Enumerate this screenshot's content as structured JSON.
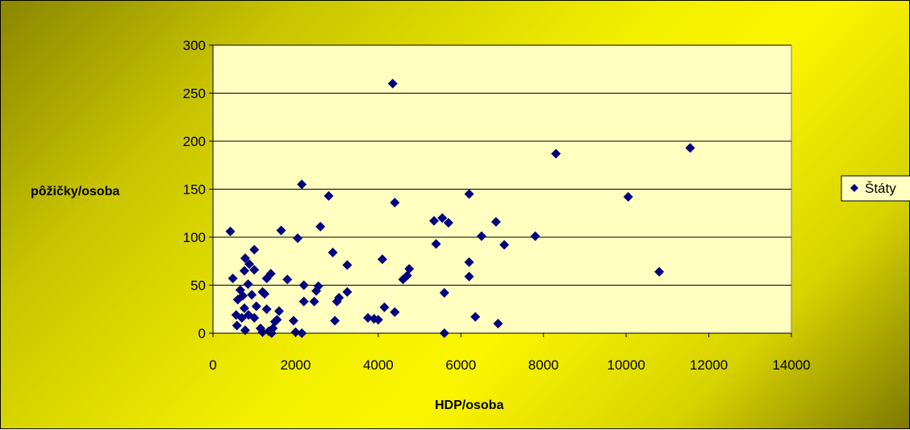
{
  "chart_data": {
    "type": "scatter",
    "xlabel": "HDP/osoba",
    "ylabel": "pôžičky/osoba",
    "xlim": [
      0,
      14000
    ],
    "ylim": [
      0,
      300
    ],
    "x_ticks": [
      0,
      2000,
      4000,
      6000,
      8000,
      10000,
      12000,
      14000
    ],
    "y_ticks": [
      0,
      50,
      100,
      150,
      200,
      250,
      300
    ],
    "grid": "horizontal",
    "legend_position": "right",
    "colors": {
      "marker": "#00007F",
      "plot_area": "#FFFFC0",
      "gridline": "#000000"
    },
    "series": [
      {
        "name": "Štáty",
        "marker": "diamond",
        "points": [
          [
            4350,
            260
          ],
          [
            11550,
            193
          ],
          [
            8300,
            187
          ],
          [
            2150,
            155
          ],
          [
            2800,
            143
          ],
          [
            6200,
            145
          ],
          [
            10050,
            142
          ],
          [
            4400,
            136
          ],
          [
            5550,
            120
          ],
          [
            5350,
            117
          ],
          [
            5700,
            115
          ],
          [
            6850,
            116
          ],
          [
            420,
            106
          ],
          [
            1650,
            107
          ],
          [
            2600,
            111
          ],
          [
            2050,
            99
          ],
          [
            6500,
            101
          ],
          [
            7800,
            101
          ],
          [
            5400,
            93
          ],
          [
            7050,
            92
          ],
          [
            1000,
            87
          ],
          [
            2900,
            84
          ],
          [
            780,
            78
          ],
          [
            880,
            72
          ],
          [
            4100,
            77
          ],
          [
            6200,
            74
          ],
          [
            3250,
            71
          ],
          [
            1000,
            66
          ],
          [
            4750,
            67
          ],
          [
            760,
            65
          ],
          [
            10800,
            64
          ],
          [
            1400,
            62
          ],
          [
            480,
            57
          ],
          [
            1300,
            57
          ],
          [
            1800,
            56
          ],
          [
            4600,
            56
          ],
          [
            4700,
            60
          ],
          [
            6200,
            59
          ],
          [
            850,
            51
          ],
          [
            2200,
            50
          ],
          [
            2550,
            49
          ],
          [
            660,
            45
          ],
          [
            1200,
            43
          ],
          [
            2500,
            44
          ],
          [
            3250,
            43
          ],
          [
            5600,
            42
          ],
          [
            1250,
            41
          ],
          [
            720,
            39
          ],
          [
            940,
            40
          ],
          [
            600,
            35
          ],
          [
            3050,
            37
          ],
          [
            3000,
            33
          ],
          [
            2200,
            33
          ],
          [
            2450,
            33
          ],
          [
            760,
            26
          ],
          [
            1050,
            28
          ],
          [
            1300,
            25
          ],
          [
            1600,
            23
          ],
          [
            4150,
            27
          ],
          [
            4400,
            22
          ],
          [
            860,
            19
          ],
          [
            560,
            19
          ],
          [
            700,
            16
          ],
          [
            1000,
            16
          ],
          [
            3750,
            16
          ],
          [
            3900,
            15
          ],
          [
            4000,
            14
          ],
          [
            2950,
            13
          ],
          [
            1950,
            13
          ],
          [
            1500,
            12
          ],
          [
            1550,
            14
          ],
          [
            6350,
            17
          ],
          [
            6900,
            10
          ],
          [
            580,
            8
          ],
          [
            1150,
            5
          ],
          [
            1450,
            5
          ],
          [
            780,
            3
          ],
          [
            1200,
            1
          ],
          [
            1350,
            2
          ],
          [
            1420,
            0
          ],
          [
            2000,
            1
          ],
          [
            2150,
            0
          ],
          [
            5600,
            0
          ]
        ]
      }
    ]
  }
}
